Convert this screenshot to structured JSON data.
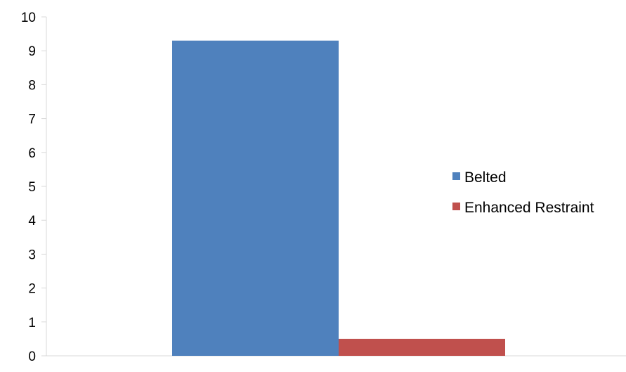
{
  "chart_data": {
    "type": "bar",
    "categories": [
      ""
    ],
    "series": [
      {
        "name": "Belted",
        "values": [
          9.3
        ],
        "color": "#4f81bd"
      },
      {
        "name": "Enhanced Restraint",
        "values": [
          0.5
        ],
        "color": "#c0504d"
      }
    ],
    "title": "",
    "xlabel": "",
    "ylabel": "",
    "ylim": [
      0,
      10
    ],
    "yticks": [
      "0",
      "1",
      "2",
      "3",
      "4",
      "5",
      "6",
      "7",
      "8",
      "9",
      "10"
    ],
    "grid": false,
    "legend_position": "right",
    "axis_color": "#d9d9d9"
  }
}
